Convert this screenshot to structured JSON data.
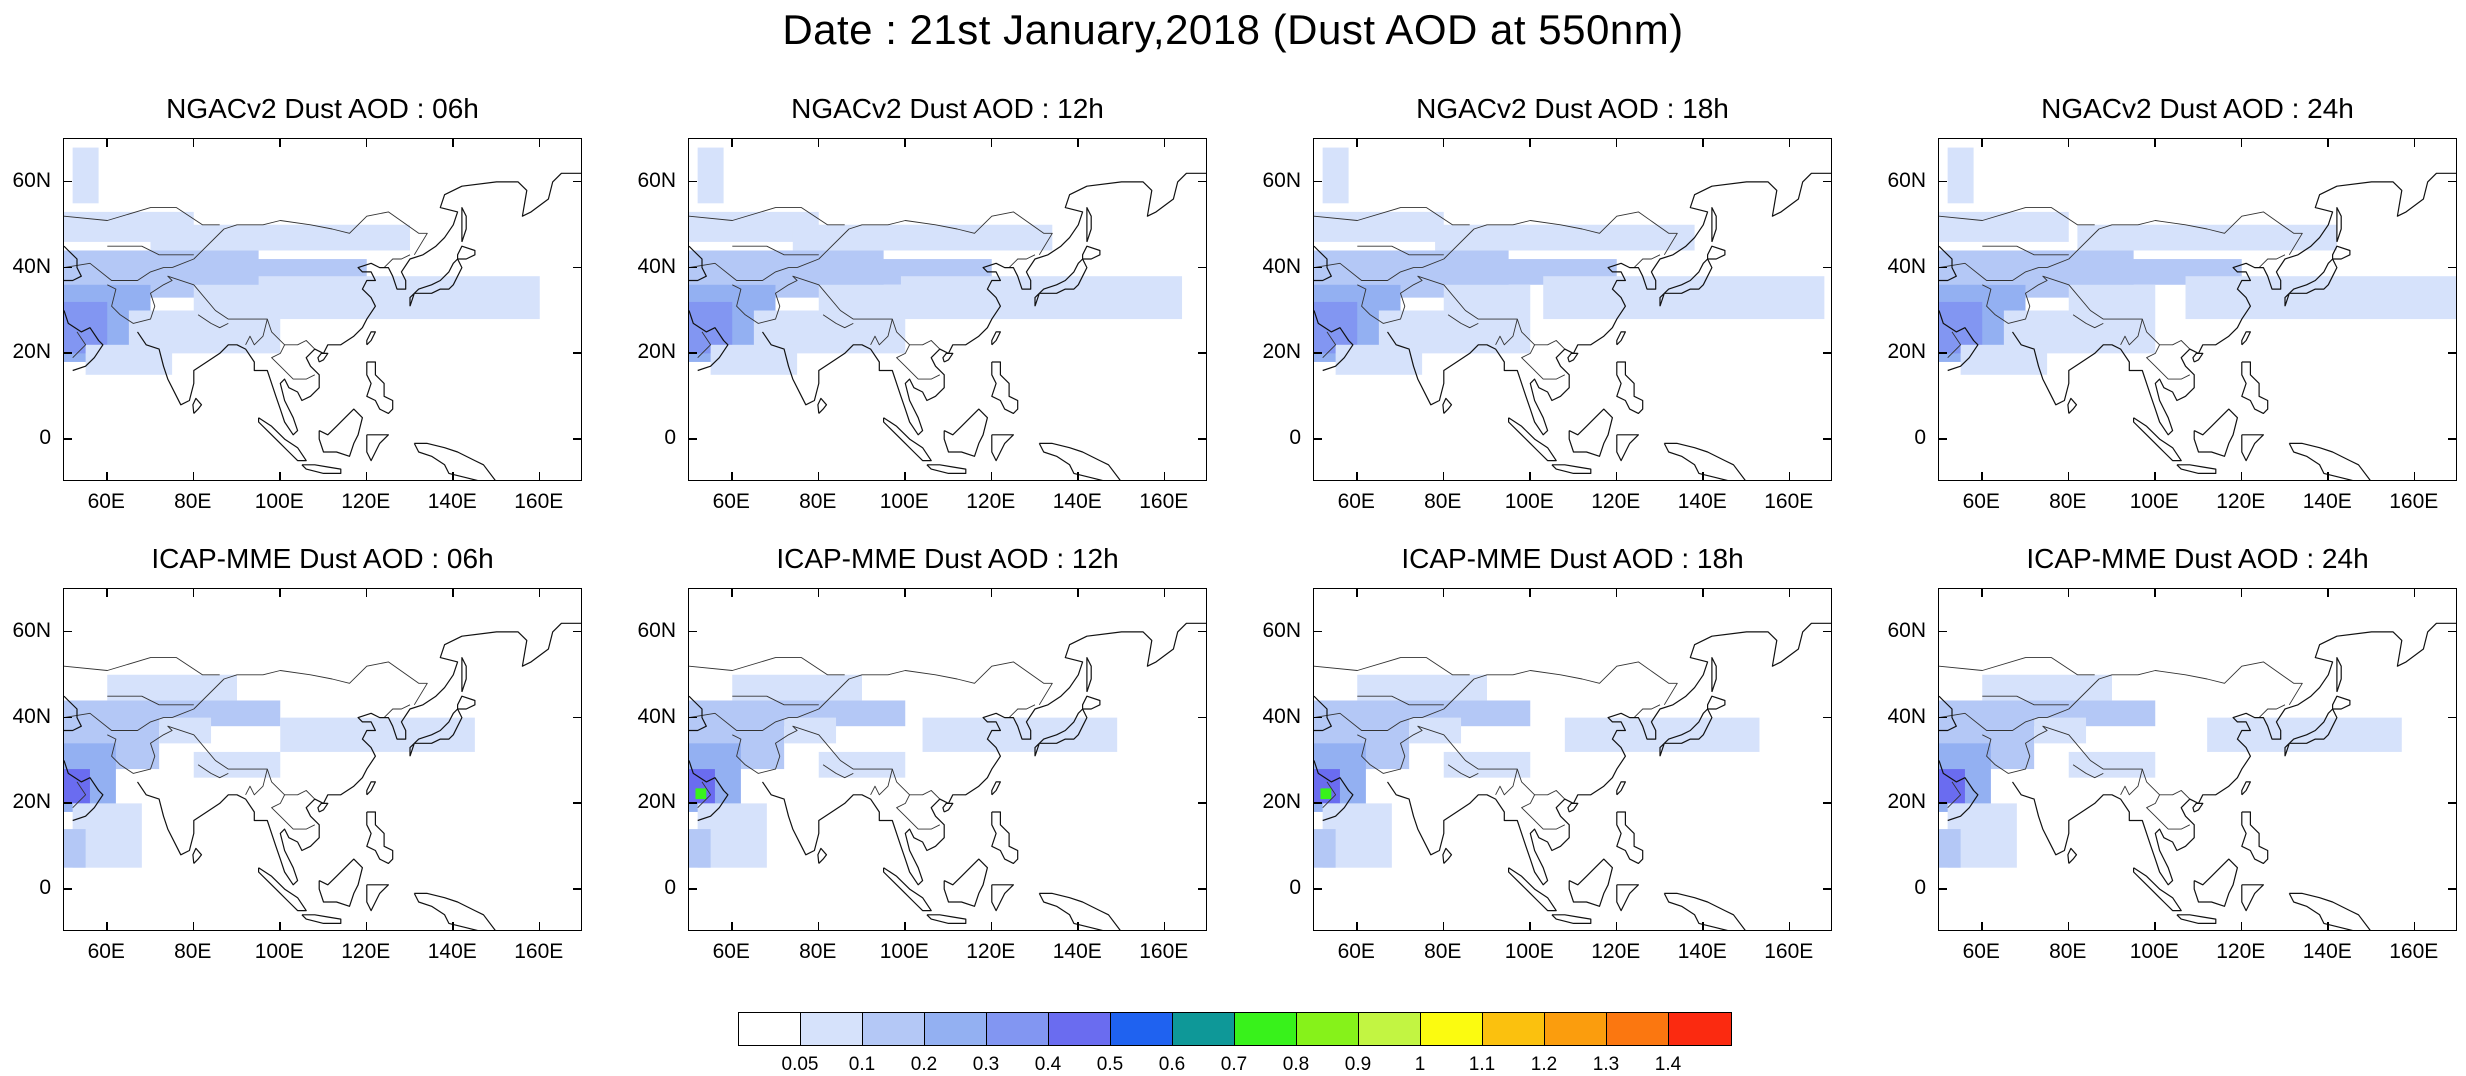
{
  "figure": {
    "title": "Date : 21st January,2018 (Dust AOD at 550nm)"
  },
  "axes": {
    "lat_ticks": [
      "60N",
      "40N",
      "20N",
      "0"
    ],
    "lon_ticks": [
      "60E",
      "80E",
      "100E",
      "120E",
      "140E",
      "160E"
    ],
    "lat_values": [
      60,
      40,
      20,
      0
    ],
    "lon_values": [
      60,
      80,
      100,
      120,
      140,
      160
    ],
    "lon_range": [
      50,
      170
    ],
    "lat_range": [
      -10,
      70
    ]
  },
  "panels": [
    {
      "title": "NGACv2 Dust AOD : 06h",
      "model": "NGACv2",
      "lead": "06h"
    },
    {
      "title": "NGACv2 Dust AOD : 12h",
      "model": "NGACv2",
      "lead": "12h"
    },
    {
      "title": "NGACv2 Dust AOD : 18h",
      "model": "NGACv2",
      "lead": "18h"
    },
    {
      "title": "NGACv2 Dust AOD : 24h",
      "model": "NGACv2",
      "lead": "24h"
    },
    {
      "title": "ICAP-MME Dust AOD : 06h",
      "model": "ICAP-MME",
      "lead": "06h"
    },
    {
      "title": "ICAP-MME Dust AOD : 12h",
      "model": "ICAP-MME",
      "lead": "12h"
    },
    {
      "title": "ICAP-MME Dust AOD : 18h",
      "model": "ICAP-MME",
      "lead": "18h"
    },
    {
      "title": "ICAP-MME Dust AOD : 24h",
      "model": "ICAP-MME",
      "lead": "24h"
    }
  ],
  "colorbar": {
    "labels": [
      "0.05",
      "0.1",
      "0.2",
      "0.3",
      "0.4",
      "0.5",
      "0.6",
      "0.7",
      "0.8",
      "0.9",
      "1",
      "1.1",
      "1.2",
      "1.3",
      "1.4"
    ],
    "colors": [
      "#ffffff",
      "#d6e2fb",
      "#b4c8f6",
      "#93b0f2",
      "#8296f2",
      "#6a6cf0",
      "#1f62f0",
      "#0e9898",
      "#38f21b",
      "#86f21a",
      "#c2f542",
      "#fbfb10",
      "#fbc10e",
      "#fb9d0d",
      "#fb7710",
      "#fb2a10"
    ]
  }
}
